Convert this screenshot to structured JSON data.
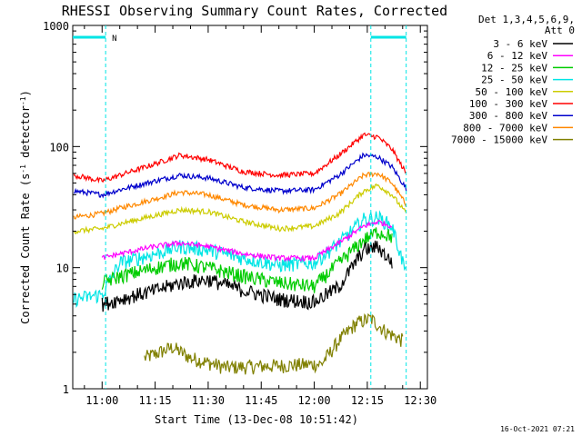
{
  "chart_data": {
    "type": "line",
    "title": "RHESSI Observing Summary Count Rates, Corrected",
    "xlabel": "Start Time (13-Dec-08 10:51:42)",
    "ylabel": "Corrected Count Rate (s",
    "ylabel_sup1": "-1",
    "ylabel_mid": " detector",
    "ylabel_sup2": "-1",
    "ylabel_end": ")",
    "y_scale": "log",
    "ylim": [
      1,
      1000
    ],
    "xlim": [
      "10:51:42",
      "12:32:00"
    ],
    "x_ticks": [
      "11:00",
      "11:15",
      "11:30",
      "11:45",
      "12:00",
      "12:15",
      "12:30"
    ],
    "y_ticks": [
      "1",
      "10",
      "100",
      "1000"
    ],
    "legend_header": [
      "Det 1,3,4,5,6,9,",
      "Att 0"
    ],
    "legend_position": "right",
    "footer_timestamp": "16-Oct-2021 07:21",
    "night_marker": "N",
    "night_intervals": [
      [
        "10:51:42",
        "11:01:00"
      ],
      [
        "12:16:00",
        "12:26:00"
      ]
    ],
    "series": [
      {
        "name": "3 - 6 keV",
        "color": "#000000",
        "t": [
          "11:00",
          "11:05",
          "11:15",
          "11:22",
          "11:30",
          "11:40",
          "11:50",
          "12:00",
          "12:07",
          "12:14",
          "12:18",
          "12:22"
        ],
        "values": [
          5,
          5.5,
          6.5,
          7.5,
          8,
          6.5,
          5.5,
          5.2,
          7,
          14,
          15,
          11
        ]
      },
      {
        "name": "6 - 12 keV",
        "color": "#ff00ff",
        "t": [
          "11:00",
          "11:05",
          "11:15",
          "11:22",
          "11:30",
          "11:40",
          "11:50",
          "12:00",
          "12:07",
          "12:14",
          "12:18",
          "12:22"
        ],
        "values": [
          12,
          13,
          15,
          16,
          15,
          13,
          12,
          12,
          16,
          22,
          24,
          22
        ]
      },
      {
        "name": "12 - 25 keV",
        "color": "#00cc00",
        "t": [
          "11:00",
          "11:05",
          "11:15",
          "11:22",
          "11:30",
          "11:40",
          "11:50",
          "12:00",
          "12:07",
          "12:14",
          "12:18",
          "12:22"
        ],
        "values": [
          7.5,
          8.5,
          10,
          11,
          10,
          8.5,
          7.5,
          7,
          11,
          17,
          20,
          18
        ]
      },
      {
        "name": "25 - 50 keV",
        "color": "#00e5e5",
        "t": [
          "10:52",
          "11:00",
          "11:05",
          "11:15",
          "11:22",
          "11:30",
          "11:40",
          "11:50",
          "12:00",
          "12:07",
          "12:14",
          "12:18",
          "12:22",
          "12:26"
        ],
        "values": [
          5.5,
          6,
          11,
          13,
          15,
          14,
          12,
          10.5,
          11,
          16,
          25,
          26,
          22,
          9
        ]
      },
      {
        "name": "50 - 100 keV",
        "color": "#cccc00",
        "t": [
          "10:52",
          "11:00",
          "11:05",
          "11:15",
          "11:22",
          "11:30",
          "11:40",
          "11:50",
          "12:00",
          "12:07",
          "12:14",
          "12:18",
          "12:22",
          "12:26"
        ],
        "values": [
          20,
          21,
          23,
          27,
          30,
          29,
          24,
          21,
          22,
          28,
          43,
          48,
          40,
          28
        ]
      },
      {
        "name": "100 - 300 keV",
        "color": "#ff0000",
        "t": [
          "10:52",
          "11:00",
          "11:05",
          "11:15",
          "11:22",
          "11:30",
          "11:40",
          "11:50",
          "12:00",
          "12:07",
          "12:14",
          "12:18",
          "12:22",
          "12:26"
        ],
        "values": [
          58,
          52,
          58,
          72,
          85,
          78,
          62,
          58,
          60,
          85,
          125,
          120,
          95,
          60
        ]
      },
      {
        "name": "300 - 800 keV",
        "color": "#0000cc",
        "t": [
          "10:52",
          "11:00",
          "11:05",
          "11:15",
          "11:22",
          "11:30",
          "11:40",
          "11:50",
          "12:00",
          "12:07",
          "12:14",
          "12:18",
          "12:22",
          "12:26"
        ],
        "values": [
          43,
          40,
          44,
          52,
          58,
          55,
          46,
          43,
          44,
          58,
          85,
          82,
          68,
          45
        ]
      },
      {
        "name": "800 - 7000 keV",
        "color": "#ff8800",
        "t": [
          "10:52",
          "11:00",
          "11:05",
          "11:15",
          "11:22",
          "11:30",
          "11:40",
          "11:50",
          "12:00",
          "12:07",
          "12:14",
          "12:18",
          "12:22",
          "12:26"
        ],
        "values": [
          26,
          28,
          31,
          37,
          42,
          40,
          33,
          30,
          31,
          40,
          58,
          60,
          50,
          33
        ]
      },
      {
        "name": "7000 - 15000 keV",
        "color": "#808000",
        "t": [
          "11:12",
          "11:20",
          "11:25",
          "11:35",
          "12:02",
          "12:07",
          "12:12",
          "12:16",
          "12:20",
          "12:25"
        ],
        "values": [
          1.8,
          2.2,
          1.8,
          1.5,
          1.6,
          2.5,
          3.5,
          3.8,
          3,
          2.5
        ]
      }
    ]
  }
}
